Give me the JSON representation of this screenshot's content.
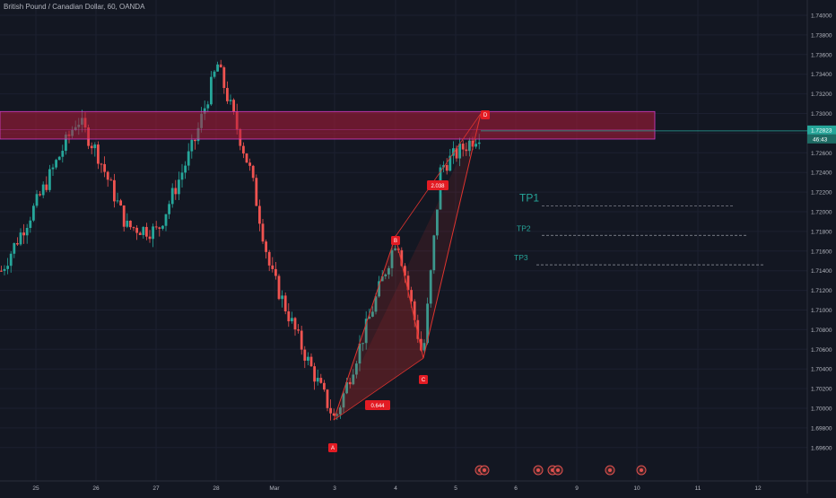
{
  "header": {
    "symbol": "British Pound / Canadian Dollar, 60, OANDA"
  },
  "price_axis": {
    "labels": [
      "1.74200",
      "1.74000",
      "1.73800",
      "1.73600",
      "1.73400",
      "1.73200",
      "1.73000",
      "1.72800",
      "1.72600",
      "1.72400",
      "1.72200",
      "1.72000",
      "1.71800",
      "1.71600",
      "1.71400",
      "1.71200",
      "1.71000",
      "1.70800",
      "1.70600",
      "1.70400",
      "1.70200",
      "1.70000",
      "1.69800",
      "1.69600"
    ],
    "current_price": "1.72823",
    "countdown": "46:43"
  },
  "time_axis": {
    "labels": [
      "25",
      "26",
      "27",
      "28",
      "Mar",
      "3",
      "4",
      "5",
      "6",
      "9",
      "10",
      "11",
      "12"
    ]
  },
  "annotations": {
    "points": [
      "A",
      "B",
      "C",
      "D"
    ],
    "ratio_xa": "0.644",
    "ratio_bc": "2.038",
    "tp1": "TP1",
    "tp2": "TP2",
    "tp3": "TP3"
  },
  "colors": {
    "background": "#131722",
    "bull": "#26a69a",
    "bear": "#ef5350",
    "zone": "#b21c3a",
    "pattern": "#e0342f",
    "price_line": "#26a69a"
  },
  "chart_data": {
    "type": "candlestick",
    "title": "British Pound / Canadian Dollar, 60, OANDA",
    "ylim": [
      1.695,
      1.743
    ],
    "zone": [
      1.7274,
      1.7302
    ],
    "pattern_prices": {
      "X": 1.6988,
      "A": 1.6988,
      "B": 1.7175,
      "C": 1.7051,
      "D": 1.73
    },
    "targets": {
      "TP1": 1.7206,
      "TP2": 1.7176,
      "TP3": 1.7146
    },
    "last_price": 1.72823,
    "close_path": [
      {
        "day": "24 Feb",
        "close": 1.714
      },
      {
        "day": "25 Feb",
        "close": 1.721
      },
      {
        "day": "25 Feb late",
        "close": 1.7295
      },
      {
        "day": "26 Feb",
        "close": 1.726
      },
      {
        "day": "26 Feb late",
        "close": 1.7185
      },
      {
        "day": "27 Feb",
        "close": 1.718
      },
      {
        "day": "27 Feb late",
        "close": 1.727
      },
      {
        "day": "28 Feb",
        "close": 1.735
      },
      {
        "day": "28 Feb late",
        "close": 1.724
      },
      {
        "day": "Mar",
        "close": 1.714
      },
      {
        "day": "2 Mar",
        "close": 1.706
      },
      {
        "day": "3 Mar",
        "close": 1.6988
      },
      {
        "day": "3 Mar late",
        "close": 1.708
      },
      {
        "day": "4 Mar",
        "close": 1.7175
      },
      {
        "day": "4 Mar late",
        "close": 1.7051
      },
      {
        "day": "5 Mar",
        "close": 1.7245
      },
      {
        "day": "5 Mar late",
        "close": 1.7282
      }
    ]
  }
}
